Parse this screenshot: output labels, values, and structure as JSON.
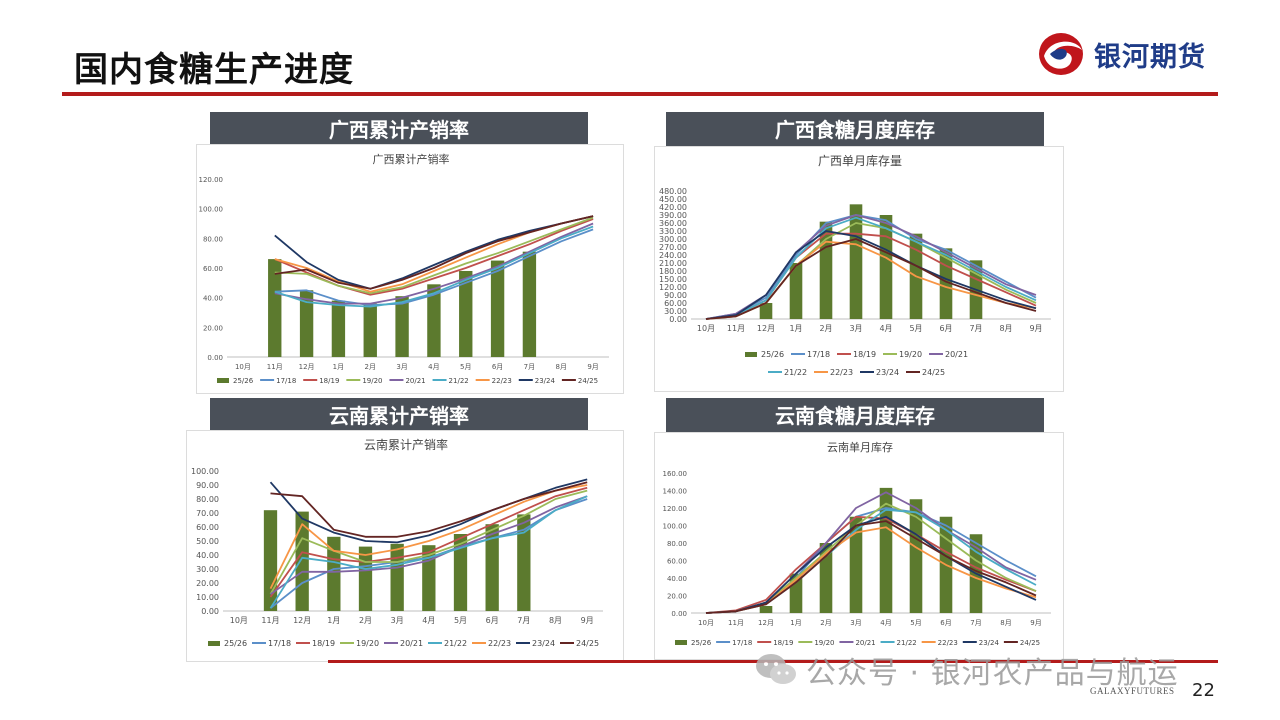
{
  "page": {
    "title": "国内食糖生产进度",
    "page_number": "22",
    "footer_mark": "GALAXYFUTURES",
    "logo_text": "银河期货",
    "watermark": "公众号 · 银河农产品与航运",
    "brand_colors": {
      "accent": "#b31b1b",
      "banner": "#4a5059",
      "logo": "#1f3c88"
    }
  },
  "sections": [
    {
      "banner": "广西累计产销率"
    },
    {
      "banner": "广西食糖月度库存"
    },
    {
      "banner": "云南累计产销率"
    },
    {
      "banner": "云南食糖月度库存"
    }
  ],
  "chart_data": [
    {
      "type": "bar",
      "title": "广西累计产销率",
      "categories": [
        "10月",
        "11月",
        "12月",
        "1月",
        "2月",
        "3月",
        "4月",
        "5月",
        "6月",
        "7月",
        "8月",
        "9月"
      ],
      "ylim": [
        0,
        120
      ],
      "yticks": [
        "0.00",
        "20.00",
        "40.00",
        "60.00",
        "80.00",
        "100.00",
        "120.00"
      ],
      "grid": false,
      "legend": "bottom",
      "series": [
        {
          "name": "25/26",
          "kind": "bar",
          "color": "#5c7a2e",
          "values": [
            null,
            66,
            45,
            38,
            36,
            41,
            49,
            58,
            65,
            71,
            null,
            null
          ]
        },
        {
          "name": "17/18",
          "kind": "line",
          "color": "#5b8fc9",
          "values": [
            null,
            44,
            45,
            38,
            35,
            36,
            42,
            50,
            58,
            68,
            78,
            86
          ]
        },
        {
          "name": "18/19",
          "kind": "line",
          "color": "#c0504d",
          "values": [
            null,
            66,
            57,
            48,
            42,
            46,
            53,
            60,
            68,
            76,
            85,
            93
          ]
        },
        {
          "name": "19/20",
          "kind": "line",
          "color": "#9bbb59",
          "values": [
            null,
            57,
            56,
            48,
            43,
            47,
            55,
            63,
            70,
            78,
            86,
            94
          ]
        },
        {
          "name": "20/21",
          "kind": "line",
          "color": "#8064a2",
          "values": [
            null,
            43,
            39,
            36,
            36,
            40,
            46,
            53,
            61,
            71,
            81,
            90
          ]
        },
        {
          "name": "21/22",
          "kind": "line",
          "color": "#4bacc6",
          "values": [
            null,
            44,
            37,
            35,
            34,
            37,
            43,
            52,
            60,
            70,
            80,
            88
          ]
        },
        {
          "name": "22/23",
          "kind": "line",
          "color": "#f79646",
          "values": [
            null,
            66,
            60,
            51,
            44,
            49,
            58,
            67,
            76,
            84,
            90,
            95
          ]
        },
        {
          "name": "23/24",
          "kind": "line",
          "color": "#1f3864",
          "values": [
            null,
            82,
            64,
            52,
            46,
            53,
            62,
            71,
            79,
            85,
            90,
            95
          ]
        },
        {
          "name": "24/25",
          "kind": "line",
          "color": "#632523",
          "values": [
            null,
            56,
            59,
            50,
            46,
            52,
            60,
            70,
            78,
            84,
            90,
            95
          ]
        }
      ]
    },
    {
      "type": "bar",
      "title": "广西单月库存量",
      "categories": [
        "10月",
        "11月",
        "12月",
        "1月",
        "2月",
        "3月",
        "4月",
        "5月",
        "6月",
        "7月",
        "8月",
        "9月"
      ],
      "ylim": [
        0,
        480
      ],
      "yticks": [
        "0.00",
        "30.00",
        "60.00",
        "90.00",
        "120.00",
        "150.00",
        "180.00",
        "210.00",
        "240.00",
        "270.00",
        "300.00",
        "330.00",
        "360.00",
        "390.00",
        "420.00",
        "450.00",
        "480.00"
      ],
      "grid": false,
      "legend": "bottom",
      "series": [
        {
          "name": "25/26",
          "kind": "bar",
          "color": "#5c7a2e",
          "values": [
            null,
            null,
            60,
            210,
            365,
            430,
            390,
            320,
            265,
            220,
            null,
            null
          ]
        },
        {
          "name": "17/18",
          "kind": "line",
          "color": "#5b8fc9",
          "values": [
            0,
            20,
            80,
            240,
            360,
            390,
            370,
            300,
            260,
            200,
            140,
            80
          ]
        },
        {
          "name": "18/19",
          "kind": "line",
          "color": "#c0504d",
          "values": [
            0,
            15,
            70,
            230,
            320,
            320,
            310,
            260,
            200,
            150,
            100,
            50
          ]
        },
        {
          "name": "19/20",
          "kind": "line",
          "color": "#9bbb59",
          "values": [
            0,
            10,
            60,
            200,
            300,
            360,
            340,
            290,
            230,
            170,
            110,
            60
          ]
        },
        {
          "name": "20/21",
          "kind": "line",
          "color": "#8064a2",
          "values": [
            0,
            20,
            90,
            250,
            350,
            390,
            360,
            310,
            250,
            190,
            130,
            90
          ]
        },
        {
          "name": "21/22",
          "kind": "line",
          "color": "#4bacc6",
          "values": [
            0,
            15,
            70,
            230,
            340,
            380,
            340,
            290,
            240,
            180,
            120,
            70
          ]
        },
        {
          "name": "22/23",
          "kind": "line",
          "color": "#f79646",
          "values": [
            0,
            10,
            60,
            200,
            290,
            280,
            230,
            160,
            120,
            90,
            60,
            40
          ]
        },
        {
          "name": "23/24",
          "kind": "line",
          "color": "#1f3864",
          "values": [
            0,
            15,
            90,
            250,
            330,
            310,
            260,
            200,
            150,
            110,
            70,
            40
          ]
        },
        {
          "name": "24/25",
          "kind": "line",
          "color": "#632523",
          "values": [
            0,
            10,
            60,
            200,
            270,
            300,
            250,
            200,
            140,
            100,
            60,
            30
          ]
        }
      ]
    },
    {
      "type": "bar",
      "title": "云南累计产销率",
      "categories": [
        "10月",
        "11月",
        "12月",
        "1月",
        "2月",
        "3月",
        "4月",
        "5月",
        "6月",
        "7月",
        "8月",
        "9月"
      ],
      "ylim": [
        0,
        100
      ],
      "yticks": [
        "0.00",
        "10.00",
        "20.00",
        "30.00",
        "40.00",
        "50.00",
        "60.00",
        "70.00",
        "80.00",
        "90.00",
        "100.00"
      ],
      "grid": false,
      "legend": "bottom",
      "series": [
        {
          "name": "25/26",
          "kind": "bar",
          "color": "#5c7a2e",
          "values": [
            null,
            72,
            71,
            53,
            46,
            48,
            47,
            55,
            62,
            69,
            null,
            null
          ]
        },
        {
          "name": "17/18",
          "kind": "line",
          "color": "#5b8fc9",
          "values": [
            null,
            2,
            20,
            30,
            32,
            35,
            38,
            46,
            52,
            58,
            72,
            80
          ]
        },
        {
          "name": "18/19",
          "kind": "line",
          "color": "#c0504d",
          "values": [
            null,
            10,
            42,
            37,
            35,
            38,
            42,
            52,
            62,
            72,
            82,
            88
          ]
        },
        {
          "name": "19/20",
          "kind": "line",
          "color": "#9bbb59",
          "values": [
            null,
            12,
            52,
            43,
            35,
            35,
            40,
            48,
            58,
            68,
            80,
            86
          ]
        },
        {
          "name": "20/21",
          "kind": "line",
          "color": "#8064a2",
          "values": [
            null,
            12,
            28,
            28,
            29,
            31,
            36,
            46,
            55,
            63,
            74,
            82
          ]
        },
        {
          "name": "21/22",
          "kind": "line",
          "color": "#4bacc6",
          "values": [
            null,
            2,
            38,
            35,
            30,
            33,
            38,
            45,
            52,
            56,
            72,
            82
          ]
        },
        {
          "name": "22/23",
          "kind": "line",
          "color": "#f79646",
          "values": [
            null,
            16,
            62,
            43,
            40,
            44,
            50,
            58,
            68,
            78,
            86,
            90
          ]
        },
        {
          "name": "23/24",
          "kind": "line",
          "color": "#1f3864",
          "values": [
            null,
            92,
            66,
            56,
            50,
            49,
            54,
            62,
            72,
            80,
            88,
            94
          ]
        },
        {
          "name": "24/25",
          "kind": "line",
          "color": "#632523",
          "values": [
            null,
            84,
            82,
            58,
            53,
            53,
            57,
            64,
            72,
            80,
            86,
            92
          ]
        }
      ]
    },
    {
      "type": "bar",
      "title": "云南单月库存",
      "categories": [
        "10月",
        "11月",
        "12月",
        "1月",
        "2月",
        "3月",
        "4月",
        "5月",
        "6月",
        "7月",
        "8月",
        "9月"
      ],
      "ylim": [
        0,
        160
      ],
      "yticks": [
        "0.00",
        "20.00",
        "40.00",
        "60.00",
        "80.00",
        "100.00",
        "120.00",
        "140.00",
        "160.00"
      ],
      "grid": false,
      "legend": "bottom",
      "series": [
        {
          "name": "25/26",
          "kind": "bar",
          "color": "#5c7a2e",
          "values": [
            null,
            null,
            8,
            45,
            80,
            110,
            143,
            130,
            110,
            90,
            null,
            null
          ]
        },
        {
          "name": "17/18",
          "kind": "line",
          "color": "#5b8fc9",
          "values": [
            0,
            2,
            10,
            40,
            80,
            110,
            120,
            115,
            100,
            80,
            60,
            42
          ]
        },
        {
          "name": "18/19",
          "kind": "line",
          "color": "#c0504d",
          "values": [
            0,
            3,
            15,
            50,
            80,
            110,
            108,
            90,
            70,
            52,
            38,
            25
          ]
        },
        {
          "name": "19/20",
          "kind": "line",
          "color": "#9bbb59",
          "values": [
            0,
            2,
            12,
            40,
            70,
            100,
            125,
            110,
            85,
            60,
            40,
            25
          ]
        },
        {
          "name": "20/21",
          "kind": "line",
          "color": "#8064a2",
          "values": [
            0,
            2,
            12,
            45,
            80,
            120,
            138,
            120,
            95,
            75,
            52,
            38
          ]
        },
        {
          "name": "21/22",
          "kind": "line",
          "color": "#4bacc6",
          "values": [
            0,
            2,
            10,
            35,
            65,
            95,
            118,
            115,
            95,
            70,
            50,
            32
          ]
        },
        {
          "name": "22/23",
          "kind": "line",
          "color": "#f79646",
          "values": [
            0,
            2,
            10,
            38,
            68,
            92,
            98,
            75,
            55,
            40,
            28,
            18
          ]
        },
        {
          "name": "23/24",
          "kind": "line",
          "color": "#1f3864",
          "values": [
            0,
            2,
            12,
            45,
            75,
            100,
            110,
            90,
            65,
            45,
            30,
            15
          ]
        },
        {
          "name": "24/25",
          "kind": "line",
          "color": "#632523",
          "values": [
            0,
            2,
            10,
            35,
            65,
            100,
            105,
            85,
            65,
            48,
            35,
            20
          ]
        }
      ]
    }
  ]
}
